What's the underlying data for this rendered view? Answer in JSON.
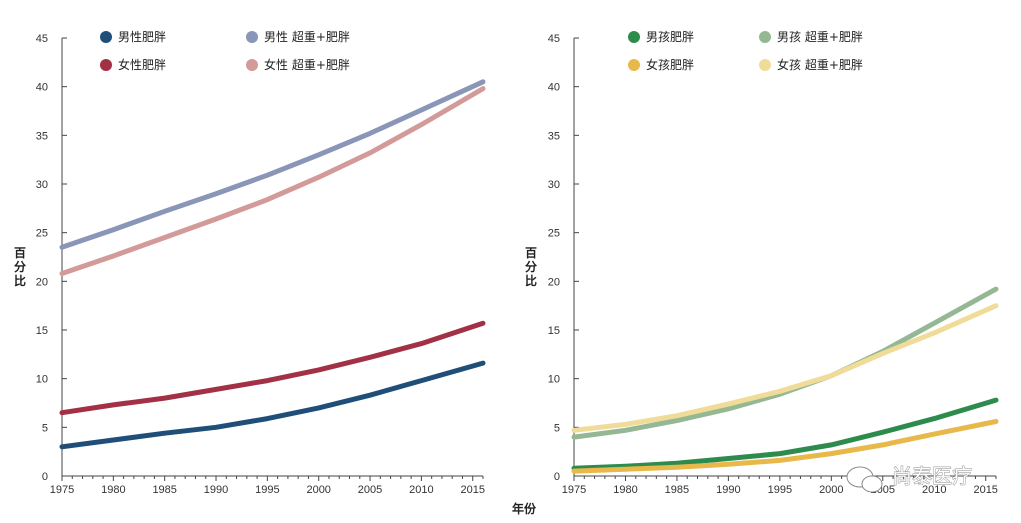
{
  "x_axis_label": "年份",
  "watermark": "尚泰医疗",
  "chart_data": [
    {
      "type": "line",
      "ylabel": "百分比",
      "ylim": [
        0,
        45
      ],
      "xlim": [
        1975,
        2016
      ],
      "yticks": [
        "0",
        "5",
        "10",
        "15",
        "20",
        "25",
        "30",
        "35",
        "40",
        "45"
      ],
      "xticks": [
        "1975",
        "1980",
        "1985",
        "1990",
        "1995",
        "2000",
        "2005",
        "2010",
        "2015"
      ],
      "grid": false,
      "legend_position": "top",
      "x": [
        1975,
        1980,
        1985,
        1990,
        1995,
        2000,
        2005,
        2010,
        2016
      ],
      "series": [
        {
          "name": "男性肥胖",
          "color": "#1f4e79",
          "values": [
            3.0,
            3.7,
            4.4,
            5.0,
            5.9,
            7.0,
            8.3,
            9.8,
            11.6
          ]
        },
        {
          "name": "男性 超重+肥胖",
          "color": "#8a96b8",
          "values": [
            23.5,
            25.3,
            27.2,
            29.0,
            30.9,
            33.0,
            35.2,
            37.6,
            40.5
          ]
        },
        {
          "name": "女性肥胖",
          "color": "#a33145",
          "values": [
            6.5,
            7.3,
            8.0,
            8.9,
            9.8,
            10.9,
            12.2,
            13.6,
            15.7
          ]
        },
        {
          "name": "女性 超重+肥胖",
          "color": "#d39a9a",
          "values": [
            20.8,
            22.6,
            24.5,
            26.4,
            28.4,
            30.7,
            33.2,
            36.1,
            39.8
          ]
        }
      ]
    },
    {
      "type": "line",
      "ylabel": "百分比",
      "ylim": [
        0,
        45
      ],
      "xlim": [
        1975,
        2016
      ],
      "yticks": [
        "0",
        "5",
        "10",
        "15",
        "20",
        "25",
        "30",
        "35",
        "40",
        "45"
      ],
      "xticks": [
        "1975",
        "1980",
        "1985",
        "1990",
        "1995",
        "2000",
        "2005",
        "2010",
        "2015"
      ],
      "grid": false,
      "legend_position": "top",
      "x": [
        1975,
        1980,
        1985,
        1990,
        1995,
        2000,
        2005,
        2010,
        2016
      ],
      "series": [
        {
          "name": "男孩肥胖",
          "color": "#2e8b4e",
          "values": [
            0.8,
            1.0,
            1.3,
            1.8,
            2.3,
            3.2,
            4.5,
            5.9,
            7.8
          ]
        },
        {
          "name": "男孩 超重+肥胖",
          "color": "#94b894",
          "values": [
            4.0,
            4.7,
            5.7,
            6.9,
            8.4,
            10.3,
            12.8,
            15.7,
            19.2
          ]
        },
        {
          "name": "女孩肥胖",
          "color": "#e8b84a",
          "values": [
            0.5,
            0.7,
            0.9,
            1.2,
            1.6,
            2.3,
            3.2,
            4.3,
            5.6
          ]
        },
        {
          "name": "女孩 超重+肥胖",
          "color": "#f0dc98",
          "values": [
            4.7,
            5.3,
            6.2,
            7.4,
            8.7,
            10.3,
            12.6,
            14.7,
            17.5
          ]
        }
      ]
    }
  ]
}
